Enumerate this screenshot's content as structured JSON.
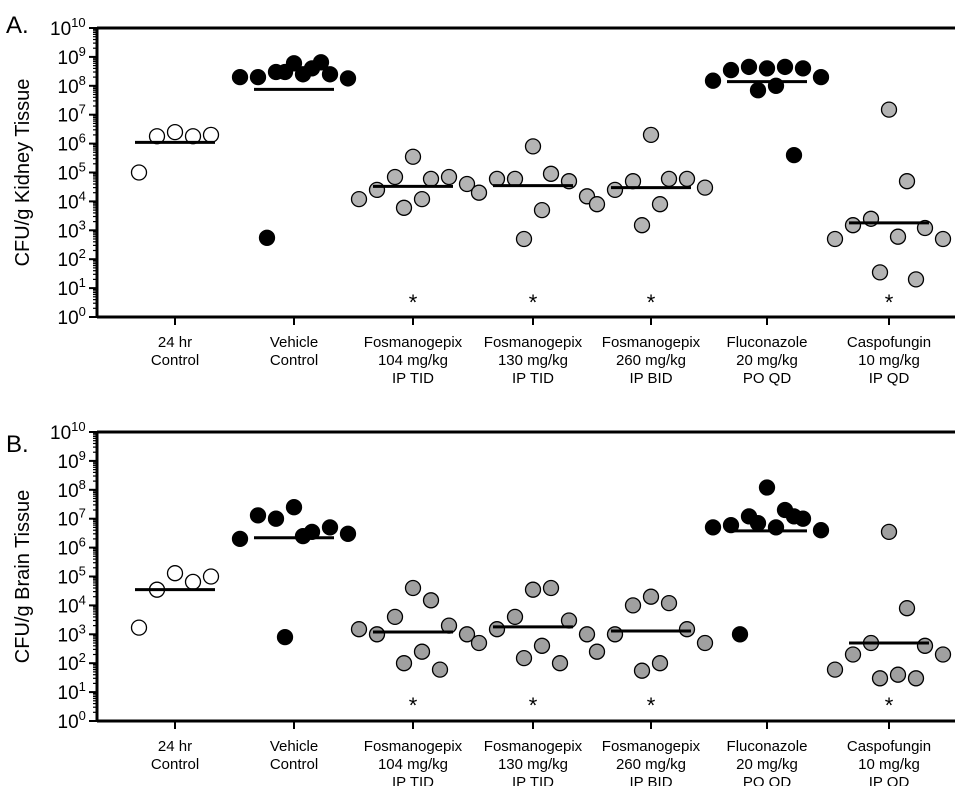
{
  "chart_data": [
    {
      "type": "scatter",
      "panel_label": "A.",
      "ylabel": "CFU/g Kidney Tissue",
      "yscale": "log",
      "ylim": [
        1,
        10000000000
      ],
      "yticks": [
        {
          "base": "10",
          "exp": "0"
        },
        {
          "base": "10",
          "exp": "1"
        },
        {
          "base": "10",
          "exp": "2"
        },
        {
          "base": "10",
          "exp": "3"
        },
        {
          "base": "10",
          "exp": "4"
        },
        {
          "base": "10",
          "exp": "5"
        },
        {
          "base": "10",
          "exp": "6"
        },
        {
          "base": "10",
          "exp": "7"
        },
        {
          "base": "10",
          "exp": "8"
        },
        {
          "base": "10",
          "exp": "9"
        },
        {
          "base": "10",
          "exp": "10"
        }
      ],
      "groups": [
        {
          "label": [
            "24 hr",
            "Control"
          ],
          "fill": "#ffffff",
          "mean": 1100000,
          "points": [
            2500000,
            1800000,
            1800000,
            2000000,
            100000
          ],
          "significance": ""
        },
        {
          "label": [
            "Vehicle",
            "Control"
          ],
          "fill": "#000000",
          "mean": 75000000,
          "points": [
            600000000,
            400000000,
            300000000,
            250000000,
            200000000,
            180000000,
            200000000,
            250000000,
            300000000,
            650000000,
            550
          ],
          "significance": ""
        },
        {
          "label": [
            "Fosmanogepix",
            "104 mg/kg",
            "IP TID"
          ],
          "fill": "#b4b4b4",
          "mean": 33000,
          "points": [
            350000,
            60000,
            70000,
            70000,
            25000,
            40000,
            12000,
            12000,
            6000
          ],
          "significance": "*"
        },
        {
          "label": [
            "Fosmanogepix",
            "130 mg/kg",
            "IP TID"
          ],
          "fill": "#b4b4b4",
          "mean": 35000,
          "points": [
            800000,
            90000,
            60000,
            50000,
            60000,
            15000,
            20000,
            5000,
            500
          ],
          "significance": "*"
        },
        {
          "label": [
            "Fosmanogepix",
            "260 mg/kg",
            "IP BID"
          ],
          "fill": "#b4b4b4",
          "mean": 30000,
          "points": [
            2000000,
            60000,
            50000,
            60000,
            25000,
            30000,
            8000,
            8000,
            1500
          ],
          "significance": "*"
        },
        {
          "label": [
            "Fluconazole",
            "20 mg/kg",
            "PO QD"
          ],
          "fill": "#000000",
          "mean": 140000000,
          "points": [
            400000000,
            450000000,
            450000000,
            400000000,
            350000000,
            200000000,
            150000000,
            100000000,
            70000000,
            400000
          ],
          "significance": ""
        },
        {
          "label": [
            "Caspofungin",
            "10 mg/kg",
            "IP QD"
          ],
          "fill": "#b4b4b4",
          "mean": 1800,
          "points": [
            15000000,
            50000,
            2500,
            1200,
            1500,
            500,
            500,
            600,
            35,
            20
          ],
          "significance": "*"
        }
      ]
    },
    {
      "type": "scatter",
      "panel_label": "B.",
      "ylabel": "CFU/g Brain Tissue",
      "yscale": "log",
      "ylim": [
        1,
        10000000000
      ],
      "yticks": [
        {
          "base": "10",
          "exp": "0"
        },
        {
          "base": "10",
          "exp": "1"
        },
        {
          "base": "10",
          "exp": "2"
        },
        {
          "base": "10",
          "exp": "3"
        },
        {
          "base": "10",
          "exp": "4"
        },
        {
          "base": "10",
          "exp": "5"
        },
        {
          "base": "10",
          "exp": "6"
        },
        {
          "base": "10",
          "exp": "7"
        },
        {
          "base": "10",
          "exp": "8"
        },
        {
          "base": "10",
          "exp": "9"
        },
        {
          "base": "10",
          "exp": "10"
        }
      ],
      "groups": [
        {
          "label": [
            "24 hr",
            "Control"
          ],
          "fill": "#ffffff",
          "mean": 35000,
          "points": [
            130000,
            65000,
            35000,
            100000,
            1700
          ],
          "significance": ""
        },
        {
          "label": [
            "Vehicle",
            "Control"
          ],
          "fill": "#000000",
          "mean": 2200000,
          "points": [
            25000000,
            3500000,
            10000000,
            5000000,
            13000000,
            3000000,
            2000000,
            2500000,
            800
          ],
          "significance": ""
        },
        {
          "label": [
            "Fosmanogepix",
            "104 mg/kg",
            "IP TID"
          ],
          "fill": "#a0a0a0",
          "mean": 1200,
          "points": [
            40000,
            15000,
            4000,
            2000,
            1000,
            1000,
            1500,
            250,
            100,
            60
          ],
          "significance": "*"
        },
        {
          "label": [
            "Fosmanogepix",
            "130 mg/kg",
            "IP TID"
          ],
          "fill": "#a0a0a0",
          "mean": 1800,
          "points": [
            35000,
            40000,
            4000,
            3000,
            1500,
            1000,
            500,
            400,
            150,
            100
          ],
          "significance": "*"
        },
        {
          "label": [
            "Fosmanogepix",
            "260 mg/kg",
            "IP BID"
          ],
          "fill": "#a0a0a0",
          "mean": 1300,
          "points": [
            20000,
            12000,
            10000,
            1500,
            1000,
            500,
            250,
            100,
            55
          ],
          "significance": "*"
        },
        {
          "label": [
            "Fluconazole",
            "20 mg/kg",
            "PO QD"
          ],
          "fill": "#000000",
          "mean": 3800000,
          "points": [
            120000000,
            20000000,
            12000000,
            10000000,
            6000000,
            4000000,
            5000000,
            5000000,
            7000000,
            12000000,
            1000
          ],
          "significance": ""
        },
        {
          "label": [
            "Caspofungin",
            "10 mg/kg",
            "IP QD"
          ],
          "fill": "#a0a0a0",
          "mean": 500,
          "points": [
            3500000,
            8000,
            500,
            400,
            200,
            200,
            60,
            40,
            30,
            30
          ],
          "significance": "*"
        }
      ]
    }
  ]
}
